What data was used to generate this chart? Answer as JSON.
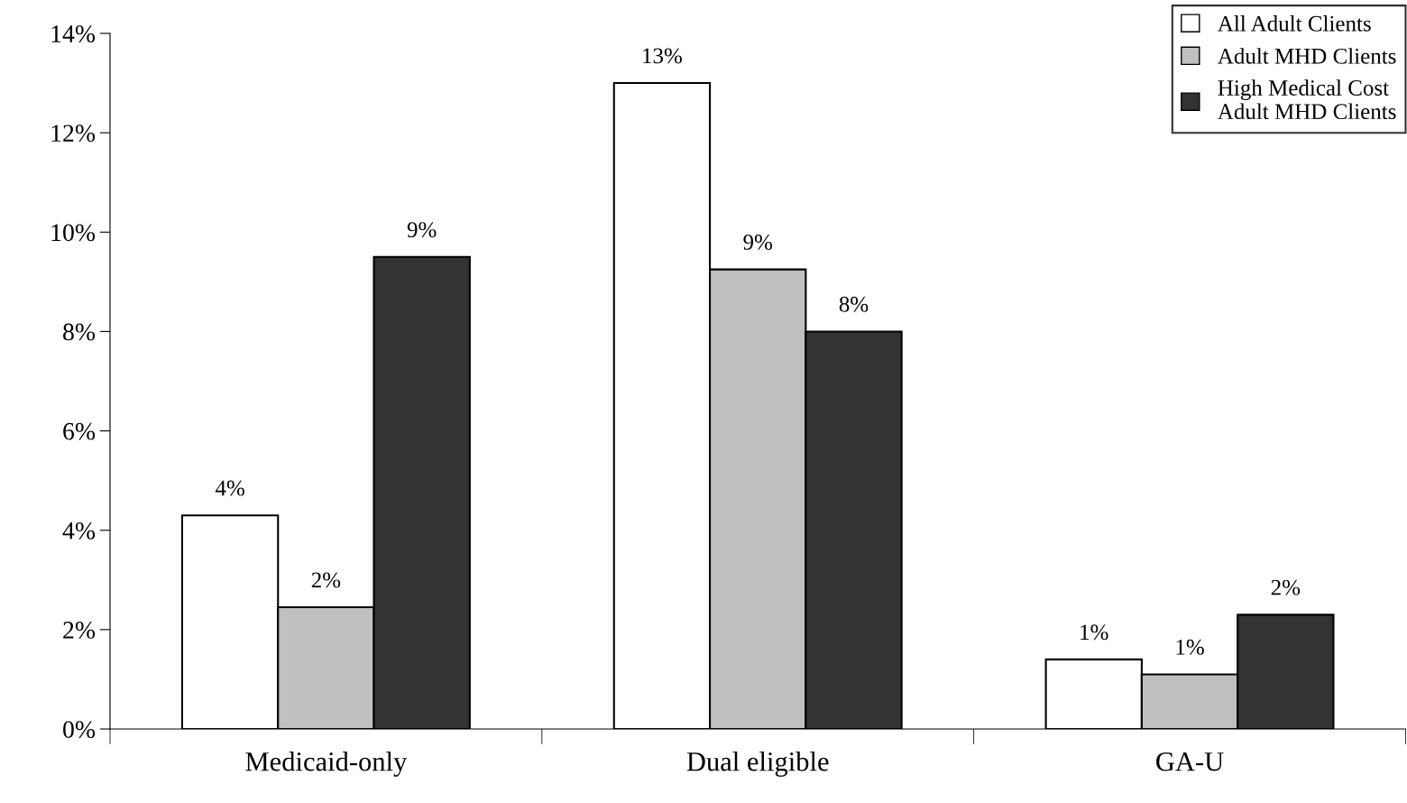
{
  "chart_data": {
    "type": "bar",
    "categories": [
      "Medicaid-only",
      "Dual eligible",
      "GA-U"
    ],
    "series": [
      {
        "name": "All Adult Clients",
        "color": "#ffffff",
        "values": [
          4.3,
          13.0,
          1.4
        ],
        "value_labels": [
          "4%",
          "13%",
          "1%"
        ]
      },
      {
        "name": "Adult MHD Clients",
        "color": "#c0c0c0",
        "values": [
          2.45,
          9.25,
          1.1
        ],
        "value_labels": [
          "2%",
          "9%",
          "1%"
        ]
      },
      {
        "name": "High Medical Cost\nAdult MHD Clients",
        "color": "#333333",
        "values": [
          9.5,
          8.0,
          2.3
        ],
        "value_labels": [
          "9%",
          "8%",
          "2%"
        ]
      }
    ],
    "ylim": [
      0,
      14
    ],
    "yticks": [
      {
        "value": 0,
        "label": "0%"
      },
      {
        "value": 2,
        "label": "2%"
      },
      {
        "value": 4,
        "label": "4%"
      },
      {
        "value": 6,
        "label": "6%"
      },
      {
        "value": 8,
        "label": "8%"
      },
      {
        "value": 10,
        "label": "10%"
      },
      {
        "value": 12,
        "label": "12%"
      },
      {
        "value": 14,
        "label": "14%"
      }
    ],
    "grid": false,
    "legend": "top right"
  }
}
